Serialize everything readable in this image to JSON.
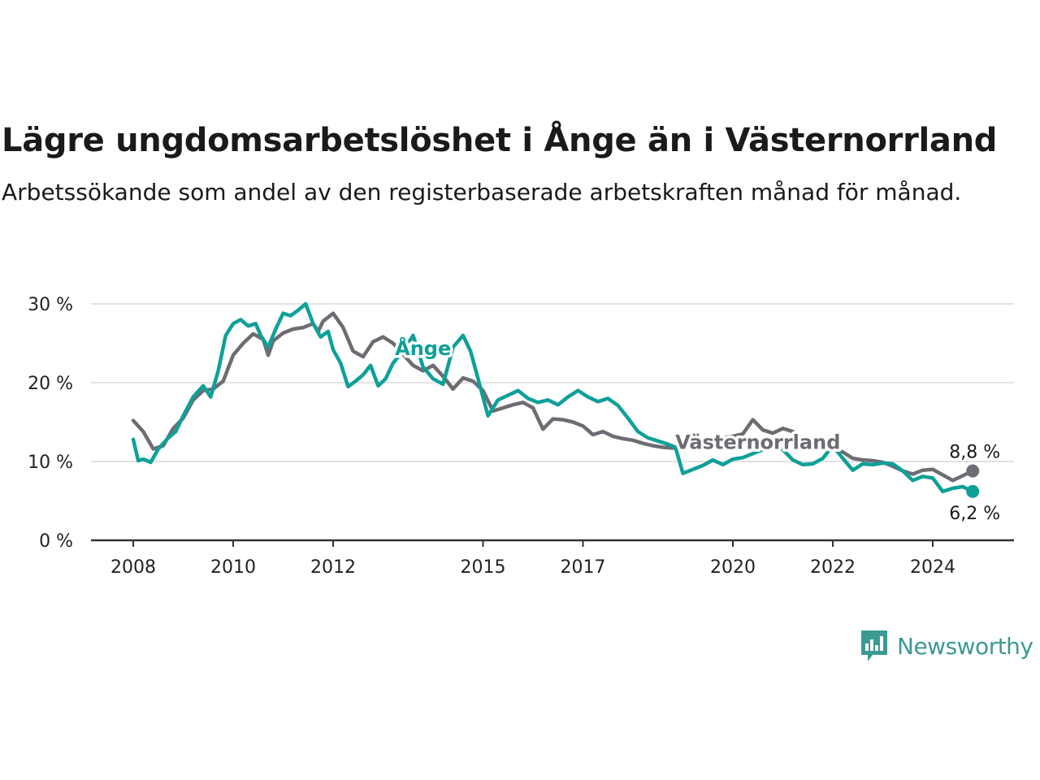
{
  "header": {
    "title": "Lägre ungdomsarbetslöshet i Ånge än i Västernorrland",
    "subtitle": "Arbetssökande som andel av den registerbaserade arbetskraften månad för månad."
  },
  "brand": {
    "name": "Newsworthy",
    "icon": "newsworthy-logo-icon",
    "color": "#3a9b93"
  },
  "chart_data": {
    "type": "line",
    "title": "Lägre ungdomsarbetslöshet i Ånge än i Västernorrland",
    "subtitle": "Arbetssökande som andel av den registerbaserade arbetskraften månad för månad.",
    "y_unit": "%",
    "ylim": [
      0,
      30
    ],
    "y_ticks": [
      {
        "value": 0,
        "label": "0 %"
      },
      {
        "value": 10,
        "label": "10 %"
      },
      {
        "value": 20,
        "label": "20 %"
      },
      {
        "value": 30,
        "label": "30 %"
      }
    ],
    "x_ticks": [
      {
        "value": 2008,
        "label": "2008"
      },
      {
        "value": 2010,
        "label": "2010"
      },
      {
        "value": 2012,
        "label": "2012"
      },
      {
        "value": 2015,
        "label": "2015"
      },
      {
        "value": 2017,
        "label": "2017"
      },
      {
        "value": 2020,
        "label": "2020"
      },
      {
        "value": 2022,
        "label": "2022"
      },
      {
        "value": 2024,
        "label": "2024"
      }
    ],
    "grid": "horizontal",
    "series": [
      {
        "name": "Västernorrland",
        "color": "#6e6c73",
        "end_label": "8,8 %",
        "points": [
          [
            2008.0,
            15.2
          ],
          [
            2008.2,
            13.8
          ],
          [
            2008.4,
            11.6
          ],
          [
            2008.6,
            12.0
          ],
          [
            2008.8,
            14.2
          ],
          [
            2009.0,
            15.5
          ],
          [
            2009.2,
            17.8
          ],
          [
            2009.4,
            19.0
          ],
          [
            2009.6,
            19.2
          ],
          [
            2009.8,
            20.2
          ],
          [
            2010.0,
            23.5
          ],
          [
            2010.2,
            25.0
          ],
          [
            2010.4,
            26.2
          ],
          [
            2010.6,
            25.5
          ],
          [
            2010.7,
            23.5
          ],
          [
            2010.8,
            25.3
          ],
          [
            2011.0,
            26.3
          ],
          [
            2011.2,
            26.8
          ],
          [
            2011.4,
            27.0
          ],
          [
            2011.6,
            27.5
          ],
          [
            2011.7,
            26.5
          ],
          [
            2011.8,
            27.8
          ],
          [
            2012.0,
            28.8
          ],
          [
            2012.2,
            27.0
          ],
          [
            2012.4,
            24.0
          ],
          [
            2012.6,
            23.3
          ],
          [
            2012.8,
            25.2
          ],
          [
            2013.0,
            25.8
          ],
          [
            2013.2,
            25.0
          ],
          [
            2013.4,
            23.6
          ],
          [
            2013.6,
            22.2
          ],
          [
            2013.8,
            21.5
          ],
          [
            2014.0,
            22.2
          ],
          [
            2014.2,
            20.8
          ],
          [
            2014.4,
            19.2
          ],
          [
            2014.6,
            20.6
          ],
          [
            2014.8,
            20.2
          ],
          [
            2015.0,
            19.0
          ],
          [
            2015.2,
            16.4
          ],
          [
            2015.4,
            16.8
          ],
          [
            2015.6,
            17.2
          ],
          [
            2015.8,
            17.5
          ],
          [
            2016.0,
            16.8
          ],
          [
            2016.2,
            14.1
          ],
          [
            2016.4,
            15.4
          ],
          [
            2016.6,
            15.3
          ],
          [
            2016.8,
            15.0
          ],
          [
            2017.0,
            14.5
          ],
          [
            2017.2,
            13.4
          ],
          [
            2017.4,
            13.8
          ],
          [
            2017.6,
            13.2
          ],
          [
            2017.8,
            12.9
          ],
          [
            2018.0,
            12.7
          ],
          [
            2018.2,
            12.3
          ],
          [
            2018.4,
            12.0
          ],
          [
            2018.6,
            11.8
          ],
          [
            2018.8,
            11.7
          ],
          [
            2019.0,
            11.8
          ],
          [
            2019.2,
            12.0
          ],
          [
            2019.4,
            12.3
          ],
          [
            2019.6,
            12.6
          ],
          [
            2019.8,
            13.0
          ],
          [
            2020.0,
            13.2
          ],
          [
            2020.2,
            13.5
          ],
          [
            2020.4,
            15.3
          ],
          [
            2020.6,
            14.0
          ],
          [
            2020.8,
            13.6
          ],
          [
            2021.0,
            14.2
          ],
          [
            2021.2,
            13.8
          ],
          [
            2021.4,
            12.8
          ],
          [
            2021.6,
            12.6
          ],
          [
            2021.8,
            12.1
          ],
          [
            2022.0,
            11.8
          ],
          [
            2022.2,
            11.2
          ],
          [
            2022.4,
            10.4
          ],
          [
            2022.6,
            10.2
          ],
          [
            2022.8,
            10.1
          ],
          [
            2023.0,
            9.9
          ],
          [
            2023.2,
            9.4
          ],
          [
            2023.4,
            8.8
          ],
          [
            2023.6,
            8.4
          ],
          [
            2023.8,
            8.9
          ],
          [
            2024.0,
            9.0
          ],
          [
            2024.2,
            8.3
          ],
          [
            2024.4,
            7.6
          ],
          [
            2024.6,
            8.2
          ],
          [
            2024.8,
            8.8
          ]
        ]
      },
      {
        "name": "Ånge",
        "color": "#0ea099",
        "end_label": "6,2 %",
        "points": [
          [
            2008.0,
            12.8
          ],
          [
            2008.1,
            10.1
          ],
          [
            2008.2,
            10.3
          ],
          [
            2008.35,
            9.9
          ],
          [
            2008.5,
            11.6
          ],
          [
            2008.7,
            13.0
          ],
          [
            2008.85,
            13.8
          ],
          [
            2009.0,
            15.8
          ],
          [
            2009.2,
            18.2
          ],
          [
            2009.4,
            19.6
          ],
          [
            2009.55,
            18.2
          ],
          [
            2009.7,
            21.5
          ],
          [
            2009.85,
            26.0
          ],
          [
            2010.0,
            27.5
          ],
          [
            2010.15,
            28.0
          ],
          [
            2010.3,
            27.2
          ],
          [
            2010.45,
            27.5
          ],
          [
            2010.55,
            26.0
          ],
          [
            2010.7,
            24.5
          ],
          [
            2010.85,
            26.8
          ],
          [
            2011.0,
            28.8
          ],
          [
            2011.15,
            28.5
          ],
          [
            2011.3,
            29.2
          ],
          [
            2011.45,
            30.0
          ],
          [
            2011.6,
            27.5
          ],
          [
            2011.75,
            25.8
          ],
          [
            2011.9,
            26.5
          ],
          [
            2012.0,
            24.2
          ],
          [
            2012.15,
            22.5
          ],
          [
            2012.3,
            19.5
          ],
          [
            2012.45,
            20.2
          ],
          [
            2012.6,
            21.0
          ],
          [
            2012.75,
            22.2
          ],
          [
            2012.9,
            19.6
          ],
          [
            2013.05,
            20.5
          ],
          [
            2013.2,
            22.5
          ],
          [
            2013.4,
            24.0
          ],
          [
            2013.6,
            26.0
          ],
          [
            2013.8,
            22.0
          ],
          [
            2014.0,
            20.5
          ],
          [
            2014.2,
            19.8
          ],
          [
            2014.4,
            24.5
          ],
          [
            2014.6,
            26.0
          ],
          [
            2014.75,
            24.0
          ],
          [
            2014.9,
            20.5
          ],
          [
            2015.1,
            15.8
          ],
          [
            2015.3,
            17.8
          ],
          [
            2015.5,
            18.4
          ],
          [
            2015.7,
            19.0
          ],
          [
            2015.9,
            18.0
          ],
          [
            2016.1,
            17.5
          ],
          [
            2016.3,
            17.8
          ],
          [
            2016.5,
            17.2
          ],
          [
            2016.7,
            18.2
          ],
          [
            2016.9,
            19.0
          ],
          [
            2017.1,
            18.2
          ],
          [
            2017.3,
            17.6
          ],
          [
            2017.5,
            18.0
          ],
          [
            2017.7,
            17.1
          ],
          [
            2017.9,
            15.5
          ],
          [
            2018.1,
            13.8
          ],
          [
            2018.3,
            13.0
          ],
          [
            2018.5,
            12.6
          ],
          [
            2018.7,
            12.2
          ],
          [
            2018.85,
            11.8
          ],
          [
            2019.0,
            8.5
          ],
          [
            2019.2,
            9.0
          ],
          [
            2019.4,
            9.5
          ],
          [
            2019.6,
            10.2
          ],
          [
            2019.8,
            9.6
          ],
          [
            2020.0,
            10.3
          ],
          [
            2020.2,
            10.5
          ],
          [
            2020.4,
            11.0
          ],
          [
            2020.6,
            11.5
          ],
          [
            2020.8,
            12.0
          ],
          [
            2021.0,
            11.5
          ],
          [
            2021.2,
            10.2
          ],
          [
            2021.4,
            9.6
          ],
          [
            2021.6,
            9.7
          ],
          [
            2021.8,
            10.4
          ],
          [
            2022.0,
            12.0
          ],
          [
            2022.2,
            10.4
          ],
          [
            2022.4,
            8.9
          ],
          [
            2022.6,
            9.7
          ],
          [
            2022.8,
            9.6
          ],
          [
            2023.0,
            9.8
          ],
          [
            2023.2,
            9.7
          ],
          [
            2023.4,
            8.8
          ],
          [
            2023.6,
            7.6
          ],
          [
            2023.8,
            8.1
          ],
          [
            2024.0,
            7.9
          ],
          [
            2024.2,
            6.2
          ],
          [
            2024.4,
            6.6
          ],
          [
            2024.6,
            6.8
          ],
          [
            2024.8,
            6.2
          ]
        ]
      }
    ],
    "annotations": [
      {
        "text": "Ånge",
        "series": "Ånge",
        "x": 2013.8,
        "y": 23.5
      },
      {
        "text": "Västernorrland",
        "series": "Västernorrland",
        "x": 2020.5,
        "y": 11.6
      }
    ]
  }
}
